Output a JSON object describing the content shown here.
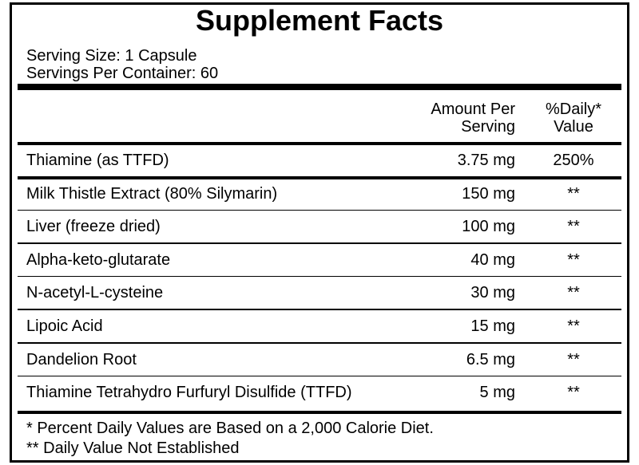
{
  "header": {
    "title": "Supplement Facts"
  },
  "serving": {
    "size": "Serving Size: 1 Capsule",
    "servings": "Servings Per Container: 60"
  },
  "table": {
    "header": [
      [
        "Amount Per",
        "Serving"
      ],
      [
        "%Daily*",
        "Value"
      ]
    ],
    "rows": [
      [
        "Thiamine (as TTFD)",
        "3.75 mg",
        "250%"
      ],
      [
        "Milk Thistle Extract (80% Silymarin)",
        "150 mg",
        "**"
      ],
      [
        "Liver (freeze dried)",
        "100 mg",
        "**"
      ],
      [
        "Alpha-keto-glutarate",
        "40 mg",
        "**"
      ],
      [
        "N-acetyl-L-cysteine",
        "30 mg",
        "**"
      ],
      [
        "Lipoic Acid",
        "15 mg",
        "**"
      ],
      [
        "Dandelion Root",
        "6.5 mg",
        "**"
      ],
      [
        "Thiamine Tetrahydro Furfuryl Disulfide (TTFD)",
        "5 mg",
        "**"
      ]
    ]
  },
  "footnotes": [
    "* Percent Daily Values are Based on a 2,000 Calorie Diet.",
    "** Daily Value Not Established"
  ]
}
